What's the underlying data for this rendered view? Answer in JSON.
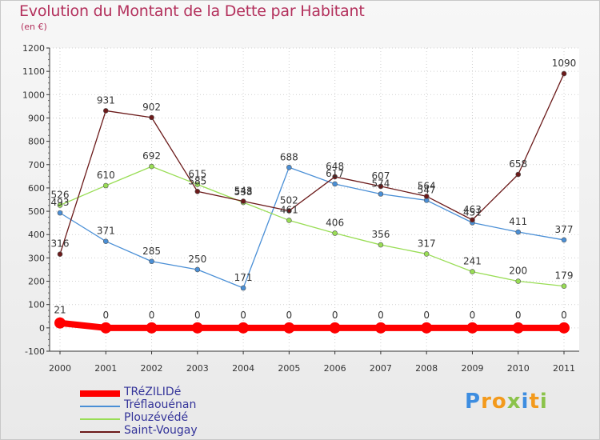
{
  "chart_data": {
    "type": "line",
    "title": "Evolution du Montant de la Dette par Habitant",
    "subtitle": "(en €)",
    "xlabel": "",
    "ylabel": "",
    "x": [
      "2000",
      "2001",
      "2002",
      "2003",
      "2004",
      "2005",
      "2006",
      "2007",
      "2008",
      "2009",
      "2010",
      "2011"
    ],
    "ylim": [
      -100,
      1200
    ],
    "yticks": [
      -100,
      0,
      100,
      200,
      300,
      400,
      500,
      600,
      700,
      800,
      900,
      1000,
      1100,
      1200
    ],
    "grid": true,
    "legend_position": "bottom-left",
    "series": [
      {
        "name": "TRéZILIDé",
        "color": "#ff0000",
        "values": [
          21,
          0,
          0,
          0,
          0,
          0,
          0,
          0,
          0,
          0,
          0,
          0
        ]
      },
      {
        "name": "Tréflaouénan",
        "color": "#4a8fd6",
        "values": [
          493,
          371,
          285,
          250,
          171,
          688,
          617,
          574,
          547,
          451,
          411,
          377
        ]
      },
      {
        "name": "Plouzévédé",
        "color": "#99dd55",
        "values": [
          526,
          610,
          692,
          615,
          538,
          461,
          406,
          356,
          317,
          241,
          200,
          179
        ]
      },
      {
        "name": "Saint-Vougay",
        "color": "#6b1a1a",
        "values": [
          316,
          931,
          902,
          585,
          543,
          502,
          648,
          607,
          564,
          463,
          658,
          1090
        ]
      }
    ]
  },
  "branding": {
    "logo_letters": [
      "P",
      "r",
      "o",
      "x",
      "i",
      "t",
      "i"
    ],
    "logo_colors": [
      "#3d8de0",
      "#f39a1c",
      "#f39a1c",
      "#8bc34a",
      "#3d8de0",
      "#f39a1c",
      "#8bc34a"
    ]
  }
}
